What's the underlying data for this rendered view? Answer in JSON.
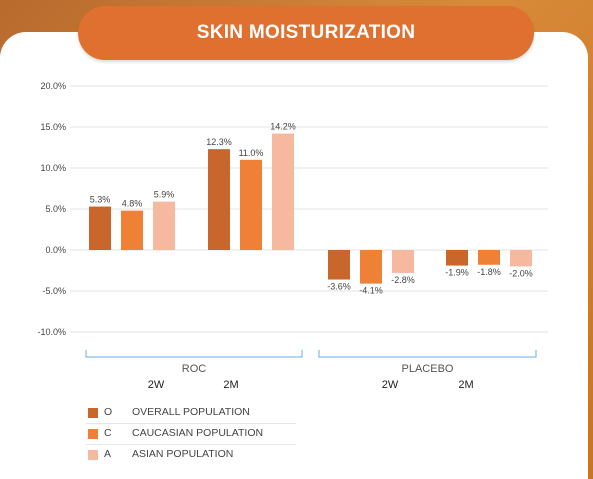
{
  "title": "SKIN MOISTURIZATION",
  "colors": {
    "overall": "#c8662b",
    "caucasian": "#ef8137",
    "asian": "#f6b9a0",
    "bracket": "#6aaee0"
  },
  "legend": [
    {
      "abbr": "O",
      "name": "OVERALL POPULATION",
      "color": "#c8662b"
    },
    {
      "abbr": "C",
      "name": "CAUCASIAN POPULATION",
      "color": "#ef8137"
    },
    {
      "abbr": "A",
      "name": "ASIAN POPULATION",
      "color": "#f6b9a0"
    }
  ],
  "chart_data": {
    "type": "bar",
    "title": "SKIN MOISTURIZATION",
    "ylim": [
      -10,
      20
    ],
    "yticks": [
      -10,
      -5,
      0,
      5,
      10,
      15,
      20
    ],
    "ytick_labels": [
      "-10.0%",
      "-5.0%",
      "0.0%",
      "5.0%",
      "10.0%",
      "15.0%",
      "20.0%"
    ],
    "groups": [
      {
        "label": "ROC",
        "subcategories": [
          "2W",
          "2M"
        ]
      },
      {
        "label": "PLACEBO",
        "subcategories": [
          "2W",
          "2M"
        ]
      }
    ],
    "categories": [
      "ROC 2W",
      "ROC 2M",
      "PLACEBO 2W",
      "PLACEBO 2M"
    ],
    "series": [
      {
        "name": "OVERALL POPULATION",
        "values": [
          5.3,
          12.3,
          -3.6,
          -1.9
        ],
        "labels": [
          "5.3%",
          "12.3%",
          "-3.6%",
          "-1.9%"
        ]
      },
      {
        "name": "CAUCASIAN POPULATION",
        "values": [
          4.8,
          11.0,
          -4.1,
          -1.8
        ],
        "labels": [
          "4.8%",
          "11.0%",
          "-4.1%",
          "-1.8%"
        ]
      },
      {
        "name": "ASIAN POPULATION",
        "values": [
          5.9,
          14.2,
          -2.8,
          -2.0
        ],
        "labels": [
          "5.9%",
          "14.2%",
          "-2.8%",
          "-2.0%"
        ]
      }
    ],
    "grid": true
  }
}
